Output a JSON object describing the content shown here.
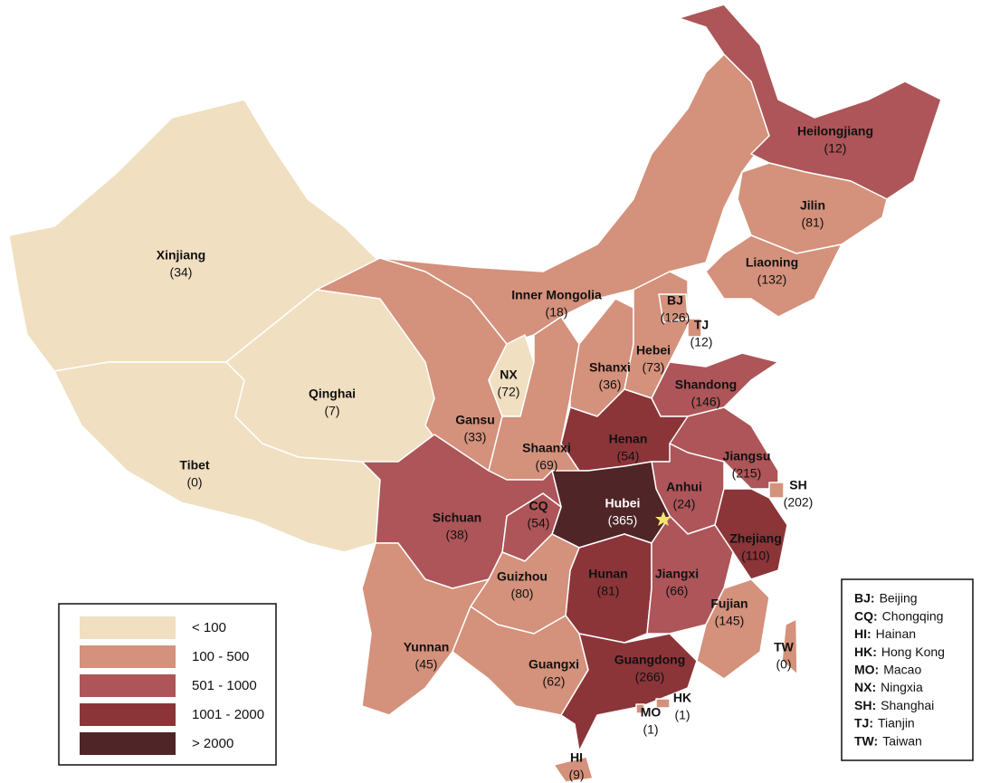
{
  "regions": [
    {
      "name": "Xinjiang",
      "count": "(34)",
      "color": "#f0dfc1"
    },
    {
      "name": "Tibet",
      "count": "(0)",
      "color": "#f0dfc1"
    },
    {
      "name": "Qinghai",
      "count": "(7)",
      "color": "#f0dfc1"
    },
    {
      "name": "Gansu",
      "count": "(33)",
      "color": "#d4917b"
    },
    {
      "name": "Inner Mongolia",
      "count": "(18)",
      "color": "#d4917b"
    },
    {
      "name": "Heilongjiang",
      "count": "(12)",
      "color": "#ad5558"
    },
    {
      "name": "Jilin",
      "count": "(81)",
      "color": "#d4917b"
    },
    {
      "name": "Liaoning",
      "count": "(132)",
      "color": "#d4917b"
    },
    {
      "name": "NX",
      "count": "(72)",
      "color": "#f0dfc1"
    },
    {
      "name": "Shaanxi",
      "count": "(69)",
      "color": "#d4917b"
    },
    {
      "name": "Shanxi",
      "count": "(36)",
      "color": "#d4917b"
    },
    {
      "name": "Hebei",
      "count": "(73)",
      "color": "#d4917b"
    },
    {
      "name": "BJ",
      "count": "(126)",
      "color": "#d4917b"
    },
    {
      "name": "TJ",
      "count": "(12)",
      "color": "#d4917b"
    },
    {
      "name": "Shandong",
      "count": "(146)",
      "color": "#ad5558"
    },
    {
      "name": "Henan",
      "count": "(54)",
      "color": "#8b3539"
    },
    {
      "name": "Jiangsu",
      "count": "(215)",
      "color": "#ad5558"
    },
    {
      "name": "SH",
      "count": "(202)",
      "color": "#d4917b"
    },
    {
      "name": "Anhui",
      "count": "(24)",
      "color": "#ad5558"
    },
    {
      "name": "Hubei",
      "count": "(365)",
      "color": "#4f2527"
    },
    {
      "name": "Zhejiang",
      "count": "(110)",
      "color": "#8b3539"
    },
    {
      "name": "CQ",
      "count": "(54)",
      "color": "#ad5558"
    },
    {
      "name": "Sichuan",
      "count": "(38)",
      "color": "#ad5558"
    },
    {
      "name": "Hunan",
      "count": "(81)",
      "color": "#8b3539"
    },
    {
      "name": "Jiangxi",
      "count": "(66)",
      "color": "#ad5558"
    },
    {
      "name": "Fujian",
      "count": "(145)",
      "color": "#d4917b"
    },
    {
      "name": "Guizhou",
      "count": "(80)",
      "color": "#d4917b"
    },
    {
      "name": "Yunnan",
      "count": "(45)",
      "color": "#d4917b"
    },
    {
      "name": "Guangxi",
      "count": "(62)",
      "color": "#d4917b"
    },
    {
      "name": "Guangdong",
      "count": "(266)",
      "color": "#8b3539"
    },
    {
      "name": "HK",
      "count": "(1)",
      "color": "#d4917b"
    },
    {
      "name": "MO",
      "count": "(1)",
      "color": "#d4917b"
    },
    {
      "name": "HI",
      "count": "(9)",
      "color": "#d4917b"
    },
    {
      "name": "TW",
      "count": "(0)",
      "color": "#d4917b"
    }
  ],
  "legend": [
    {
      "label": "< 100",
      "color": "#f0dfc1"
    },
    {
      "label": "100 - 500",
      "color": "#d4917b"
    },
    {
      "label": "501 - 1000",
      "color": "#ad5558"
    },
    {
      "label": "1001 - 2000",
      "color": "#8b3539"
    },
    {
      "label": "> 2000",
      "color": "#4f2527"
    }
  ],
  "key": [
    {
      "abbr": "BJ:",
      "name": "Beijing"
    },
    {
      "abbr": "CQ:",
      "name": "Chongqing"
    },
    {
      "abbr": "HI:",
      "name": "Hainan"
    },
    {
      "abbr": "HK:",
      "name": "Hong Kong"
    },
    {
      "abbr": "MO:",
      "name": "Macao"
    },
    {
      "abbr": "NX:",
      "name": "Ningxia"
    },
    {
      "abbr": "SH:",
      "name": "Shanghai"
    },
    {
      "abbr": "TJ:",
      "name": "Tianjin"
    },
    {
      "abbr": "TW:",
      "name": "Taiwan"
    }
  ]
}
